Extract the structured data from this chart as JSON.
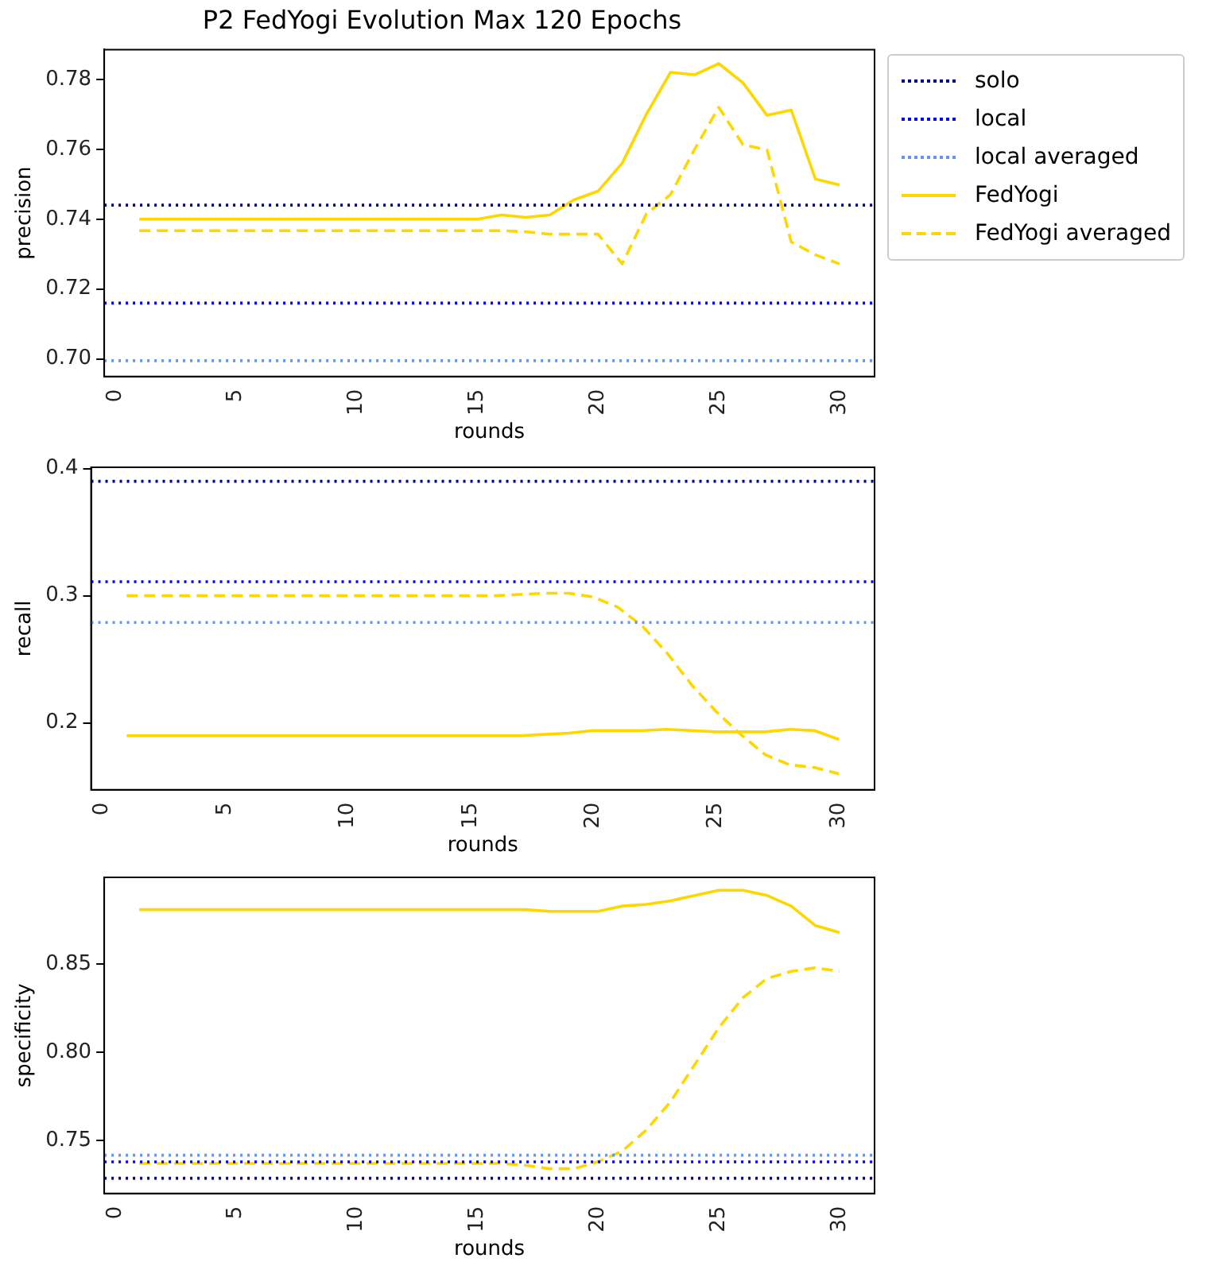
{
  "chart_data": [
    {
      "type": "line",
      "title": "P2 FedYogi Evolution Max 120 Epochs",
      "xlabel": "rounds",
      "ylabel": "precision",
      "x": [
        1,
        2,
        3,
        4,
        5,
        6,
        7,
        8,
        9,
        10,
        11,
        12,
        13,
        14,
        15,
        16,
        17,
        18,
        19,
        20,
        21,
        22,
        23,
        24,
        25,
        26,
        27,
        28,
        29,
        30
      ],
      "xlim": [
        -0.45,
        31.45
      ],
      "xticks": [
        0,
        5,
        10,
        15,
        20,
        25,
        30
      ],
      "ylim": [
        0.695,
        0.7885
      ],
      "yticks": [
        {
          "value": 0.7,
          "label": "0.70"
        },
        0.72,
        0.74,
        0.76,
        0.78
      ],
      "grid": false,
      "legend": "right",
      "ref_lines": [
        {
          "axis": "y",
          "value": 0.744,
          "label": "solo",
          "color": "#00008b",
          "line_style": "dotted"
        },
        {
          "axis": "y",
          "value": 0.716,
          "label": "local",
          "color": "#0000ff",
          "line_style": "dotted"
        },
        {
          "axis": "y",
          "value": 0.6995,
          "label": "local averaged",
          "color": "#6495ed",
          "line_style": "dotted"
        }
      ],
      "series": [
        {
          "name": "FedYogi",
          "color": "#ffd700",
          "line_style": "solid",
          "values": [
            0.74,
            0.74,
            0.74,
            0.74,
            0.74,
            0.74,
            0.74,
            0.74,
            0.74,
            0.74,
            0.74,
            0.74,
            0.74,
            0.74,
            0.74,
            0.7412,
            0.7405,
            0.7412,
            0.7455,
            0.748,
            0.756,
            0.77,
            0.782,
            0.7813,
            0.7845,
            0.779,
            0.7697,
            0.7712,
            0.7515,
            0.7498
          ]
        },
        {
          "name": "FedYogi averaged",
          "color": "#ffd700",
          "line_style": "dashed",
          "values": [
            0.7367,
            0.7367,
            0.7367,
            0.7367,
            0.7367,
            0.7367,
            0.7367,
            0.7367,
            0.7367,
            0.7367,
            0.7367,
            0.7367,
            0.7367,
            0.7367,
            0.7367,
            0.7367,
            0.7364,
            0.7357,
            0.7357,
            0.7357,
            0.7272,
            0.7415,
            0.747,
            0.76,
            0.772,
            0.7613,
            0.7598,
            0.7335,
            0.7298,
            0.7272
          ]
        }
      ]
    },
    {
      "type": "line",
      "xlabel": "rounds",
      "ylabel": "recall",
      "x": [
        1,
        2,
        3,
        4,
        5,
        6,
        7,
        8,
        9,
        10,
        11,
        12,
        13,
        14,
        15,
        16,
        17,
        18,
        19,
        20,
        21,
        22,
        23,
        24,
        25,
        26,
        27,
        28,
        29,
        30
      ],
      "xlim": [
        -0.45,
        31.45
      ],
      "xticks": [
        0,
        5,
        10,
        15,
        20,
        25,
        30
      ],
      "ylim": [
        0.1475,
        0.401
      ],
      "yticks": [
        0.2,
        0.3,
        0.4
      ],
      "grid": false,
      "ref_lines": [
        {
          "axis": "y",
          "value": 0.39,
          "color": "#00008b",
          "line_style": "dotted"
        },
        {
          "axis": "y",
          "value": 0.311,
          "color": "#0000ff",
          "line_style": "dotted"
        },
        {
          "axis": "y",
          "value": 0.279,
          "color": "#6495ed",
          "line_style": "dotted"
        }
      ],
      "series": [
        {
          "color": "#ffd700",
          "line_style": "solid",
          "values": [
            0.19,
            0.19,
            0.19,
            0.19,
            0.19,
            0.19,
            0.19,
            0.19,
            0.19,
            0.19,
            0.19,
            0.19,
            0.19,
            0.19,
            0.19,
            0.19,
            0.19,
            0.191,
            0.192,
            0.194,
            0.194,
            0.194,
            0.195,
            0.194,
            0.193,
            0.193,
            0.193,
            0.195,
            0.194,
            0.187
          ]
        },
        {
          "color": "#ffd700",
          "line_style": "dashed",
          "values": [
            0.3,
            0.3,
            0.3,
            0.3,
            0.3,
            0.3,
            0.3,
            0.3,
            0.3,
            0.3,
            0.3,
            0.3,
            0.3,
            0.3,
            0.3,
            0.3,
            0.301,
            0.302,
            0.302,
            0.299,
            0.291,
            0.276,
            0.255,
            0.23,
            0.209,
            0.191,
            0.175,
            0.167,
            0.165,
            0.16
          ]
        }
      ]
    },
    {
      "type": "line",
      "xlabel": "rounds",
      "ylabel": "specificity",
      "x": [
        1,
        2,
        3,
        4,
        5,
        6,
        7,
        8,
        9,
        10,
        11,
        12,
        13,
        14,
        15,
        16,
        17,
        18,
        19,
        20,
        21,
        22,
        23,
        24,
        25,
        26,
        27,
        28,
        29,
        30
      ],
      "xlim": [
        -0.45,
        31.45
      ],
      "xticks": [
        0,
        5,
        10,
        15,
        20,
        25,
        30
      ],
      "ylim": [
        0.72,
        0.8993
      ],
      "yticks": [
        0.75,
        {
          "value": 0.8,
          "label": "0.80"
        },
        0.85
      ],
      "grid": false,
      "ref_lines": [
        {
          "axis": "y",
          "value": 0.7286,
          "color": "#00008b",
          "line_style": "dotted"
        },
        {
          "axis": "y",
          "value": 0.7379,
          "color": "#0000ff",
          "line_style": "dotted"
        },
        {
          "axis": "y",
          "value": 0.7417,
          "color": "#6495ed",
          "line_style": "dotted"
        }
      ],
      "series": [
        {
          "color": "#ffd700",
          "line_style": "solid",
          "values": [
            0.881,
            0.881,
            0.881,
            0.881,
            0.881,
            0.881,
            0.881,
            0.881,
            0.881,
            0.881,
            0.881,
            0.881,
            0.881,
            0.881,
            0.881,
            0.881,
            0.881,
            0.88,
            0.88,
            0.88,
            0.883,
            0.884,
            0.886,
            0.889,
            0.892,
            0.892,
            0.889,
            0.883,
            0.872,
            0.868
          ]
        },
        {
          "color": "#ffd700",
          "line_style": "dashed",
          "values": [
            0.737,
            0.737,
            0.737,
            0.737,
            0.737,
            0.737,
            0.737,
            0.737,
            0.737,
            0.737,
            0.737,
            0.737,
            0.737,
            0.737,
            0.737,
            0.737,
            0.736,
            0.734,
            0.734,
            0.738,
            0.744,
            0.756,
            0.772,
            0.793,
            0.814,
            0.831,
            0.842,
            0.846,
            0.848,
            0.846
          ]
        }
      ]
    }
  ]
}
